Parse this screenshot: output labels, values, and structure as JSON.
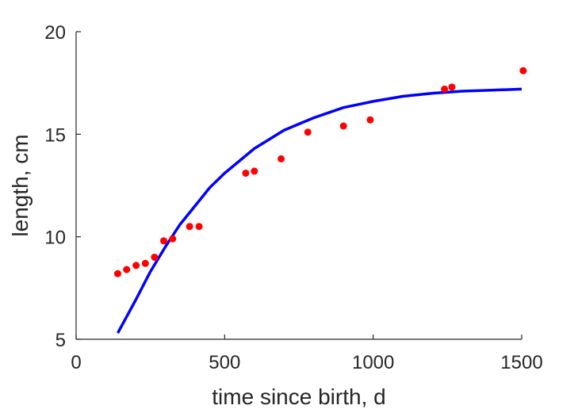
{
  "chart_data": {
    "type": "scatter",
    "title": "",
    "xlabel": "time since birth, d",
    "ylabel": "length, cm",
    "xlim": [
      0,
      1500
    ],
    "ylim": [
      5,
      20
    ],
    "xticks": [
      0,
      500,
      1000,
      1500
    ],
    "yticks": [
      5,
      10,
      15,
      20
    ],
    "grid": false,
    "legend": "none",
    "series": [
      {
        "kind": "points",
        "color": "#ff0000",
        "x": [
          140,
          170,
          202,
          233,
          264,
          295,
          325,
          382,
          414,
          571,
          600,
          690,
          780,
          900,
          990,
          1240,
          1265,
          1505
        ],
        "y": [
          8.2,
          8.4,
          8.6,
          8.7,
          9.0,
          9.8,
          9.9,
          10.5,
          10.5,
          13.1,
          13.2,
          13.8,
          15.1,
          15.4,
          15.7,
          17.2,
          17.3,
          18.1
        ]
      },
      {
        "kind": "fitted-curve",
        "color": "#0000ff",
        "x": [
          140,
          200,
          250,
          300,
          350,
          400,
          450,
          500,
          600,
          700,
          800,
          900,
          1000,
          1100,
          1200,
          1300,
          1400,
          1500
        ],
        "y": [
          5.3,
          6.9,
          8.3,
          9.5,
          10.6,
          11.5,
          12.4,
          13.1,
          14.3,
          15.2,
          15.8,
          16.3,
          16.6,
          16.85,
          17.0,
          17.1,
          17.15,
          17.2
        ]
      }
    ]
  }
}
